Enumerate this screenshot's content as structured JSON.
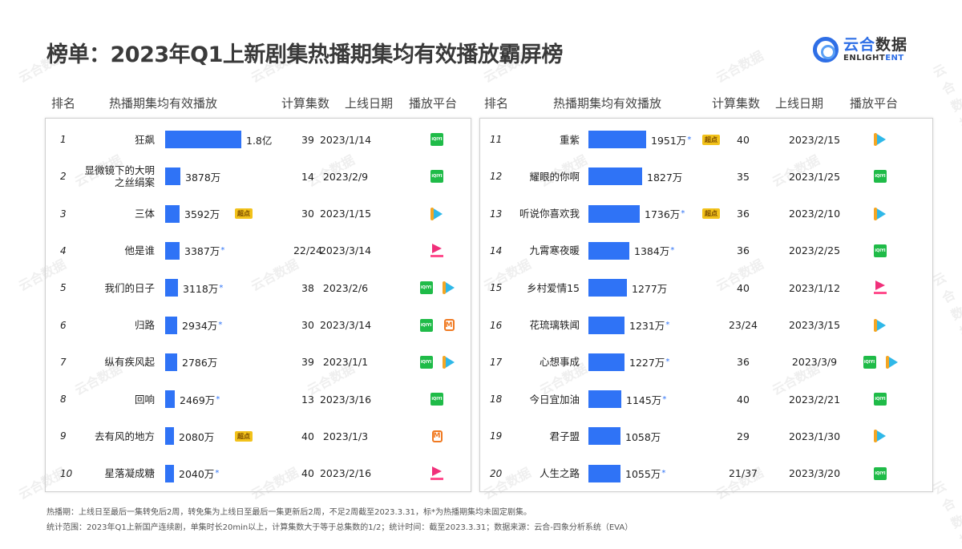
{
  "title": "榜单：2023年Q1上新剧集热播期集均有效播放霸屏榜",
  "logo": {
    "cn_blue": "云合",
    "cn_dark": "数据",
    "en_dark": "ENLIGHT",
    "en_blue": "ENT"
  },
  "headers": {
    "rank": "排名",
    "play": "热播期集均有效播放",
    "episodes": "计算集数",
    "date": "上线日期",
    "platform": "播放平台"
  },
  "badge_label": "超点",
  "star": "*",
  "colors": {
    "bar": "#2f73f6",
    "badge": "#f2c21b",
    "iqiyi": "#1fbb48",
    "tencent": "#2fb8e8",
    "youku": "#f0307a",
    "mango": "#f07a22"
  },
  "left_rows": [
    {
      "rank": "1",
      "name": "狂飙",
      "value": "1.8亿",
      "star": false,
      "badge": false,
      "episodes": "39",
      "date": "2023/1/14",
      "platforms": [
        "iqiyi"
      ],
      "bar": 95
    },
    {
      "rank": "2",
      "name": "显微镜下的大明之丝绢案",
      "name_l1": "显微镜下的大明",
      "name_l2": "之丝绢案",
      "value": "3878万",
      "star": false,
      "badge": false,
      "episodes": "14",
      "date": "2023/2/9",
      "platforms": [
        "iqiyi"
      ],
      "bar": 19
    },
    {
      "rank": "3",
      "name": "三体",
      "value": "3592万",
      "star": false,
      "badge": true,
      "episodes": "30",
      "date": "2023/1/15",
      "platforms": [
        "tencent"
      ],
      "bar": 18
    },
    {
      "rank": "4",
      "name": "他是谁",
      "value": "3387万",
      "star": true,
      "badge": false,
      "episodes": "22/24",
      "date": "2023/3/14",
      "platforms": [
        "youku"
      ],
      "bar": 18
    },
    {
      "rank": "5",
      "name": "我们的日子",
      "value": "3118万",
      "star": true,
      "badge": false,
      "episodes": "38",
      "date": "2023/2/6",
      "platforms": [
        "iqiyi",
        "tencent"
      ],
      "bar": 16
    },
    {
      "rank": "6",
      "name": "归路",
      "value": "2934万",
      "star": true,
      "badge": false,
      "episodes": "30",
      "date": "2023/3/14",
      "platforms": [
        "iqiyi",
        "mango"
      ],
      "bar": 15
    },
    {
      "rank": "7",
      "name": "纵有疾风起",
      "value": "2786万",
      "star": false,
      "badge": false,
      "episodes": "39",
      "date": "2023/1/1",
      "platforms": [
        "iqiyi",
        "tencent"
      ],
      "bar": 15
    },
    {
      "rank": "8",
      "name": "回响",
      "value": "2469万",
      "star": true,
      "badge": false,
      "episodes": "13",
      "date": "2023/3/16",
      "platforms": [
        "iqiyi"
      ],
      "bar": 12
    },
    {
      "rank": "9",
      "name": "去有风的地方",
      "value": "2080万",
      "star": false,
      "badge": true,
      "episodes": "40",
      "date": "2023/1/3",
      "platforms": [
        "mango"
      ],
      "bar": 11
    },
    {
      "rank": "10",
      "name": "星落凝成糖",
      "value": "2040万",
      "star": true,
      "badge": false,
      "episodes": "40",
      "date": "2023/2/16",
      "platforms": [
        "youku"
      ],
      "bar": 11
    }
  ],
  "right_rows": [
    {
      "rank": "11",
      "name": "重紫",
      "value": "1951万",
      "star": true,
      "badge": true,
      "episodes": "40",
      "date": "2023/2/15",
      "platforms": [
        "tencent"
      ],
      "bar": 72
    },
    {
      "rank": "12",
      "name": "耀眼的你啊",
      "value": "1827万",
      "star": false,
      "badge": false,
      "episodes": "35",
      "date": "2023/1/25",
      "platforms": [
        "iqiyi"
      ],
      "bar": 67
    },
    {
      "rank": "13",
      "name": "听说你喜欢我",
      "value": "1736万",
      "star": true,
      "badge": true,
      "episodes": "36",
      "date": "2023/2/10",
      "platforms": [
        "tencent"
      ],
      "bar": 64
    },
    {
      "rank": "14",
      "name": "九霄寒夜暖",
      "value": "1384万",
      "star": true,
      "badge": false,
      "episodes": "36",
      "date": "2023/2/25",
      "platforms": [
        "iqiyi"
      ],
      "bar": 51
    },
    {
      "rank": "15",
      "name": "乡村爱情15",
      "value": "1277万",
      "star": false,
      "badge": false,
      "episodes": "40",
      "date": "2023/1/12",
      "platforms": [
        "youku"
      ],
      "bar": 48
    },
    {
      "rank": "16",
      "name": "花琉璃轶闻",
      "value": "1231万",
      "star": true,
      "badge": false,
      "episodes": "23/24",
      "date": "2023/3/15",
      "platforms": [
        "tencent"
      ],
      "bar": 45
    },
    {
      "rank": "17",
      "name": "心想事成",
      "value": "1227万",
      "star": true,
      "badge": false,
      "episodes": "36",
      "date": "2023/3/9",
      "platforms": [
        "iqiyi",
        "tencent"
      ],
      "bar": 45
    },
    {
      "rank": "18",
      "name": "今日宜加油",
      "value": "1145万",
      "star": true,
      "badge": false,
      "episodes": "40",
      "date": "2023/2/21",
      "platforms": [
        "iqiyi"
      ],
      "bar": 41
    },
    {
      "rank": "19",
      "name": "君子盟",
      "value": "1058万",
      "star": false,
      "badge": false,
      "episodes": "29",
      "date": "2023/1/30",
      "platforms": [
        "tencent"
      ],
      "bar": 40
    },
    {
      "rank": "20",
      "name": "人生之路",
      "value": "1055万",
      "star": true,
      "badge": false,
      "episodes": "21/37",
      "date": "2023/3/20",
      "platforms": [
        "iqiyi"
      ],
      "bar": 40
    }
  ],
  "footnotes": [
    "热播期：上线日至最后一集转免后2周，转免集为上线日至最后一集更新后2周，不足2周截至2023.3.31，标*为热播期集均未固定剧集。",
    "统计范围：2023年Q1上新国产连续剧，单集时长20min以上，计算集数大于等于总集数的1/2；统计时间：截至2023.3.31；数据来源：云合-四象分析系统（EVA）"
  ],
  "watermark": "云合数据",
  "chart_data": {
    "type": "bar",
    "title": "榜单：2023年Q1上新剧集热播期集均有效播放霸屏榜",
    "xlabel": "",
    "ylabel": "热播期集均有效播放",
    "categories": [
      "狂飙",
      "显微镜下的大明之丝绢案",
      "三体",
      "他是谁",
      "我们的日子",
      "归路",
      "纵有疾风起",
      "回响",
      "去有风的地方",
      "星落凝成糖",
      "重紫",
      "耀眼的你啊",
      "听说你喜欢我",
      "九霄寒夜暖",
      "乡村爱情15",
      "花琉璃轶闻",
      "心想事成",
      "今日宜加油",
      "君子盟",
      "人生之路"
    ],
    "series": [
      {
        "name": "热播期集均有效播放（万）",
        "values": [
          18000,
          3878,
          3592,
          3387,
          3118,
          2934,
          2786,
          2469,
          2080,
          2040,
          1951,
          1827,
          1736,
          1384,
          1277,
          1231,
          1227,
          1145,
          1058,
          1055
        ]
      }
    ],
    "episodes": [
      "39",
      "14",
      "30",
      "22/24",
      "38",
      "30",
      "39",
      "13",
      "40",
      "40",
      "40",
      "35",
      "36",
      "36",
      "40",
      "23/24",
      "36",
      "40",
      "29",
      "21/37"
    ],
    "release_dates": [
      "2023/1/14",
      "2023/2/9",
      "2023/1/15",
      "2023/3/14",
      "2023/2/6",
      "2023/3/14",
      "2023/1/1",
      "2023/3/16",
      "2023/1/3",
      "2023/2/16",
      "2023/2/15",
      "2023/1/25",
      "2023/2/10",
      "2023/2/25",
      "2023/1/12",
      "2023/3/15",
      "2023/3/9",
      "2023/2/21",
      "2023/1/30",
      "2023/3/20"
    ],
    "orientation": "horizontal",
    "legend": "none",
    "grid": false
  }
}
